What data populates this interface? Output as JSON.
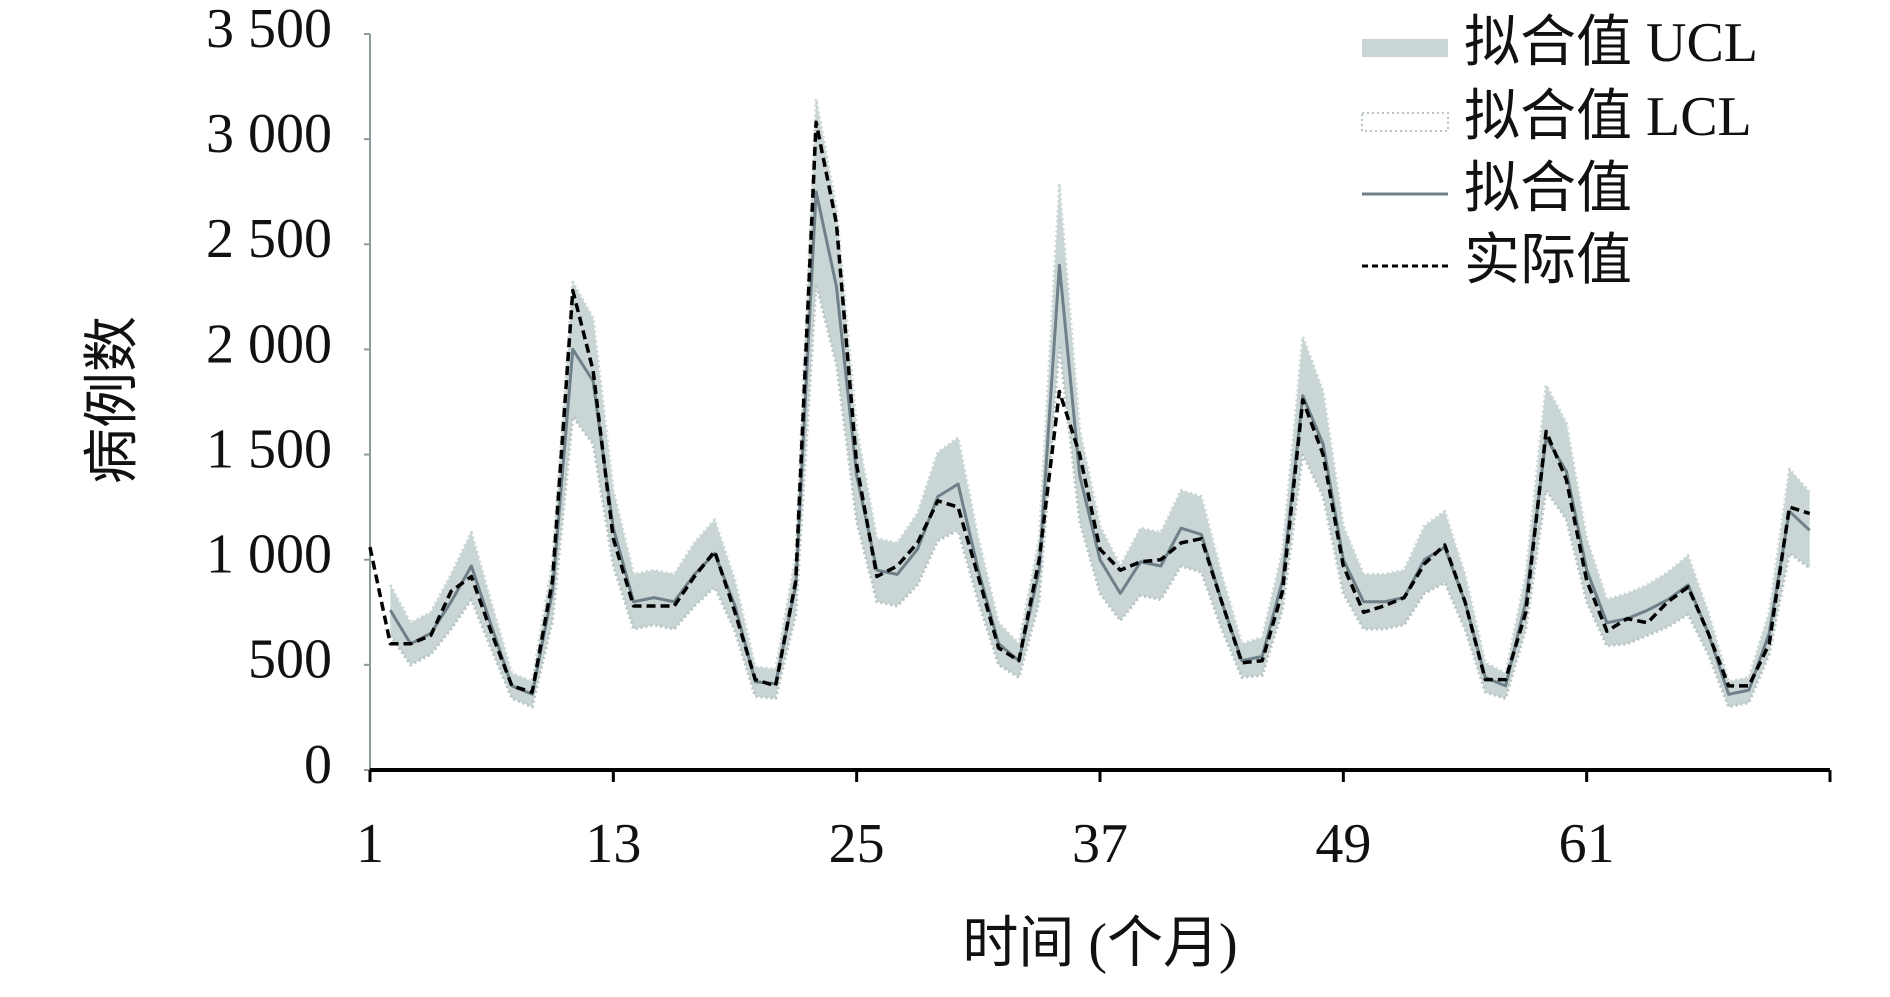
{
  "chart_data": {
    "type": "line",
    "ylabel": "病例数",
    "xlabel": "时间 (个月)",
    "x": [
      1,
      2,
      3,
      4,
      5,
      6,
      7,
      8,
      9,
      10,
      11,
      12,
      13,
      14,
      15,
      16,
      17,
      18,
      19,
      20,
      21,
      22,
      23,
      24,
      25,
      26,
      27,
      28,
      29,
      30,
      31,
      32,
      33,
      34,
      35,
      36,
      37,
      38,
      39,
      40,
      41,
      42,
      43,
      44,
      45,
      46,
      47,
      48,
      49,
      50,
      51,
      52,
      53,
      54,
      55,
      56,
      57,
      58,
      59,
      60,
      61,
      62,
      63,
      64,
      65,
      66,
      67,
      68,
      69,
      70,
      71,
      72
    ],
    "xlim": [
      1,
      73
    ],
    "xticks": [
      1,
      13,
      25,
      37,
      49,
      61
    ],
    "ylim": [
      0,
      3500
    ],
    "yticks": [
      0,
      500,
      {
        "value": 1000,
        "label": "1 000"
      },
      {
        "value": 1500,
        "label": "1 500"
      },
      {
        "value": 2000,
        "label": "2 000"
      },
      {
        "value": 2500,
        "label": "2 500"
      },
      {
        "value": 3000,
        "label": "3 000"
      },
      {
        "value": 3500,
        "label": "3 500"
      }
    ],
    "legend": "top-right",
    "series": [
      {
        "name": "拟合值 UCL",
        "color": "#c9d6d5",
        "values": [
          null,
          880,
          700,
          750,
          930,
          1130,
          790,
          460,
          420,
          990,
          2320,
          2150,
          1330,
          930,
          950,
          930,
          1080,
          1190,
          900,
          490,
          480,
          1020,
          3190,
          2670,
          1620,
          1100,
          1080,
          1220,
          1510,
          1580,
          1100,
          700,
          600,
          1100,
          2780,
          1620,
          1160,
          970,
          1150,
          1130,
          1330,
          1300,
          930,
          600,
          630,
          1040,
          2060,
          1800,
          1160,
          930,
          930,
          950,
          1160,
          1230,
          930,
          510,
          460,
          930,
          1830,
          1650,
          1100,
          810,
          840,
          880,
          940,
          1020,
          750,
          420,
          440,
          750,
          1430,
          1320
        ]
      },
      {
        "name": "拟合值 LCL",
        "color": "#b8c4c4",
        "values": [
          null,
          640,
          500,
          550,
          670,
          810,
          570,
          340,
          300,
          710,
          1680,
          1550,
          970,
          670,
          690,
          670,
          780,
          870,
          660,
          350,
          340,
          740,
          2310,
          1930,
          1180,
          800,
          780,
          880,
          1090,
          1140,
          800,
          500,
          440,
          800,
          2020,
          1180,
          840,
          710,
          830,
          810,
          970,
          940,
          670,
          440,
          450,
          760,
          1500,
          1300,
          840,
          670,
          670,
          690,
          840,
          890,
          670,
          370,
          340,
          670,
          1330,
          1190,
          800,
          590,
          600,
          640,
          680,
          740,
          550,
          300,
          320,
          550,
          1030,
          960
        ]
      },
      {
        "name": "拟合值",
        "color": "#6f8088",
        "values": [
          null,
          760,
          600,
          650,
          800,
          970,
          680,
          400,
          360,
          850,
          2000,
          1850,
          1150,
          800,
          820,
          800,
          930,
          1030,
          780,
          420,
          410,
          880,
          2750,
          2300,
          1400,
          950,
          930,
          1050,
          1300,
          1360,
          950,
          600,
          520,
          950,
          2400,
          1400,
          1000,
          840,
          990,
          970,
          1150,
          1120,
          800,
          520,
          540,
          900,
          1780,
          1550,
          1000,
          800,
          800,
          820,
          1000,
          1060,
          800,
          440,
          400,
          800,
          1580,
          1420,
          950,
          700,
          720,
          760,
          810,
          880,
          650,
          360,
          380,
          650,
          1230,
          1140
        ]
      },
      {
        "name": "实际值",
        "color": "#000000",
        "values": [
          1060,
          600,
          600,
          640,
          850,
          920,
          650,
          400,
          370,
          900,
          2280,
          1900,
          1100,
          780,
          780,
          780,
          920,
          1040,
          750,
          430,
          400,
          900,
          3080,
          2600,
          1450,
          920,
          970,
          1080,
          1280,
          1250,
          920,
          580,
          520,
          1000,
          1800,
          1500,
          1050,
          950,
          990,
          1000,
          1080,
          1100,
          800,
          510,
          520,
          850,
          1760,
          1500,
          970,
          750,
          780,
          820,
          980,
          1070,
          800,
          430,
          430,
          750,
          1610,
          1380,
          900,
          660,
          720,
          700,
          800,
          870,
          650,
          400,
          400,
          600,
          1250,
          1220
        ]
      }
    ]
  }
}
